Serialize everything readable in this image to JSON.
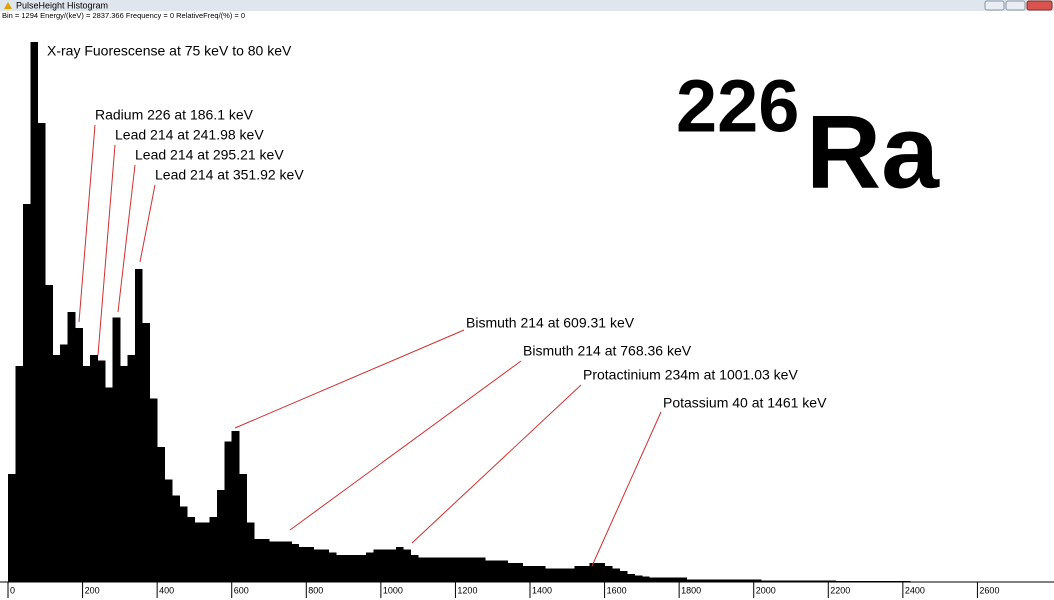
{
  "window": {
    "title": "PulseHeight Histogram",
    "status": "Bin = 1294  Energy/(keV) = 2837.366  Frequency = 0  RelativeFreq/(%) = 0"
  },
  "isotope": {
    "mass_number": "226",
    "symbol": "Ra"
  },
  "chart_data": {
    "type": "histogram",
    "color": "#000000",
    "xlim": [
      0,
      2800
    ],
    "ylim": [
      0,
      100
    ],
    "xticks": [
      0,
      200,
      400,
      600,
      800,
      1000,
      1200,
      1400,
      1600,
      1800,
      2000,
      2200,
      2400,
      2600
    ],
    "bins": [
      0,
      20,
      40,
      60,
      80,
      100,
      120,
      140,
      160,
      180,
      200,
      220,
      240,
      260,
      280,
      300,
      320,
      340,
      360,
      380,
      400,
      420,
      440,
      460,
      480,
      500,
      520,
      540,
      560,
      580,
      600,
      620,
      640,
      660,
      680,
      700,
      720,
      740,
      760,
      780,
      800,
      820,
      840,
      860,
      880,
      900,
      920,
      940,
      960,
      980,
      1000,
      1020,
      1040,
      1060,
      1080,
      1100,
      1120,
      1140,
      1160,
      1180,
      1200,
      1220,
      1240,
      1260,
      1280,
      1300,
      1320,
      1340,
      1360,
      1380,
      1400,
      1420,
      1440,
      1460,
      1480,
      1500,
      1520,
      1540,
      1560,
      1580,
      1600,
      1620,
      1640,
      1660,
      1680,
      1700,
      1720,
      1740,
      1760,
      1780,
      1800,
      1820,
      1840,
      1860,
      1880,
      1900,
      1920,
      1940,
      1960,
      1980,
      2000,
      2020,
      2040,
      2060,
      2080,
      2100,
      2120,
      2140,
      2160,
      2180,
      2200,
      2220,
      2240,
      2260,
      2280,
      2300,
      2320,
      2340,
      2360,
      2380,
      2400,
      2420,
      2440,
      2460,
      2480,
      2500,
      2520,
      2540,
      2560,
      2580,
      2600,
      2620,
      2640,
      2660,
      2680,
      2700,
      2720,
      2740,
      2760,
      2780,
      2800
    ],
    "values": [
      20,
      40,
      70,
      100,
      85,
      55,
      42,
      44,
      50,
      47,
      40,
      42,
      41,
      36,
      49,
      40,
      42,
      58,
      48,
      34,
      25,
      19,
      16,
      14,
      12,
      11,
      11,
      12,
      17,
      26,
      28,
      20,
      11,
      8,
      8,
      7.5,
      7.5,
      7.5,
      7,
      6.5,
      6.5,
      6,
      6,
      5.5,
      5,
      5,
      5,
      5,
      5.5,
      6,
      6,
      6,
      6.5,
      6,
      5,
      4.5,
      4.5,
      4.5,
      4.5,
      4.5,
      4.5,
      4.5,
      4.5,
      4.5,
      4,
      4,
      4,
      3.5,
      3.5,
      3,
      3,
      3,
      2.5,
      2.5,
      2.5,
      2.5,
      3,
      3,
      3.5,
      3.5,
      3,
      2.5,
      2,
      1.5,
      1.2,
      1,
      0.8,
      0.8,
      0.8,
      0.8,
      0.8,
      0.5,
      0.5,
      0.5,
      0.5,
      0.5,
      0.5,
      0.5,
      0.5,
      0.5,
      0.5,
      0.3,
      0.3,
      0.3,
      0.3,
      0.3,
      0.3,
      0.3,
      0.3,
      0.3,
      0.3,
      0.2,
      0.2,
      0.2,
      0.2,
      0.2,
      0.2,
      0.2,
      0.2,
      0.2,
      0.2,
      0,
      0,
      0,
      0,
      0,
      0,
      0,
      0,
      0,
      0,
      0,
      0,
      0,
      0,
      0,
      0,
      0,
      0,
      0,
      0
    ],
    "annotations": [
      "X-ray Fuorescense at 75 keV to 80 keV",
      "Radium 226 at 186.1 keV",
      "Lead 214  at  241.98 keV",
      "Lead 214 at 295.21 keV",
      "Lead 214 at 351.92 keV",
      "Bismuth 214 at 609.31 keV",
      "Bismuth 214 at 768.36 keV",
      "Protactinium 234m at 1001.03 keV",
      "Potassium 40 at 1461 keV"
    ]
  }
}
